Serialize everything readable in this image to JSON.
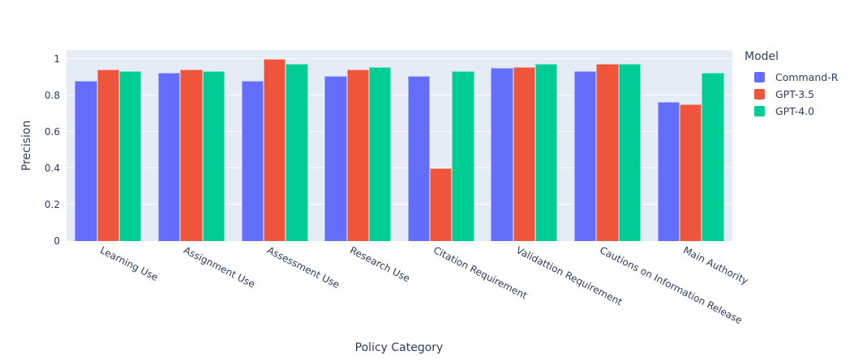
{
  "chart_data": {
    "type": "bar",
    "title": "",
    "xlabel": "Policy Category",
    "ylabel": "Precision",
    "legend_title": "Model",
    "legend_position": "top-right",
    "grid": true,
    "plot_bg_color": "#E5ECF6",
    "grid_color": "#FFFFFF",
    "text_color": "#2A3F5F",
    "ylim": [
      0,
      1.047
    ],
    "yticks": [
      0,
      0.2,
      0.4,
      0.6,
      0.8,
      1
    ],
    "ytick_labels": [
      "0",
      "0.2",
      "0.4",
      "0.6",
      "0.8",
      "1"
    ],
    "categories": [
      "Learning Use",
      "Assignment Use",
      "Assessment Use",
      "Research Use",
      "Citation Requirement",
      "Validattion Requirement",
      "Cautions on Information Release",
      "Main Authority"
    ],
    "series": [
      {
        "name": "Command-R",
        "color": "#636EFA",
        "values": [
          0.88,
          0.925,
          0.88,
          0.905,
          0.905,
          0.95,
          0.93,
          0.765
        ]
      },
      {
        "name": "GPT-3.5",
        "color": "#EF553B",
        "values": [
          0.94,
          0.94,
          1.0,
          0.94,
          0.4,
          0.955,
          0.97,
          0.75
        ]
      },
      {
        "name": "GPT-4.0",
        "color": "#00CC96",
        "values": [
          0.93,
          0.93,
          0.97,
          0.955,
          0.93,
          0.97,
          0.97,
          0.925
        ]
      }
    ]
  }
}
